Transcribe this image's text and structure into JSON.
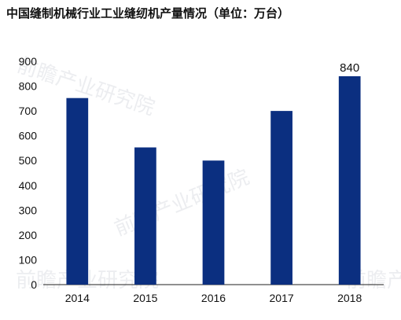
{
  "chart_data": {
    "type": "bar",
    "title": "中国缝制机械行业工业缝纫机产量情况（单位：万台）",
    "categories": [
      "2014",
      "2015",
      "2016",
      "2017",
      "2018"
    ],
    "values": [
      752,
      553,
      500,
      700,
      840
    ],
    "ylim": [
      0,
      900
    ],
    "yticks": [
      0,
      100,
      200,
      300,
      400,
      500,
      600,
      700,
      800,
      900
    ],
    "data_labels": [
      {
        "category": "2018",
        "text": "840"
      }
    ],
    "bar_color": "#0b2f80",
    "grid": false,
    "legend": "none",
    "watermark": {
      "text": "前瞻产业研究院",
      "color": "#c9ced6"
    }
  }
}
